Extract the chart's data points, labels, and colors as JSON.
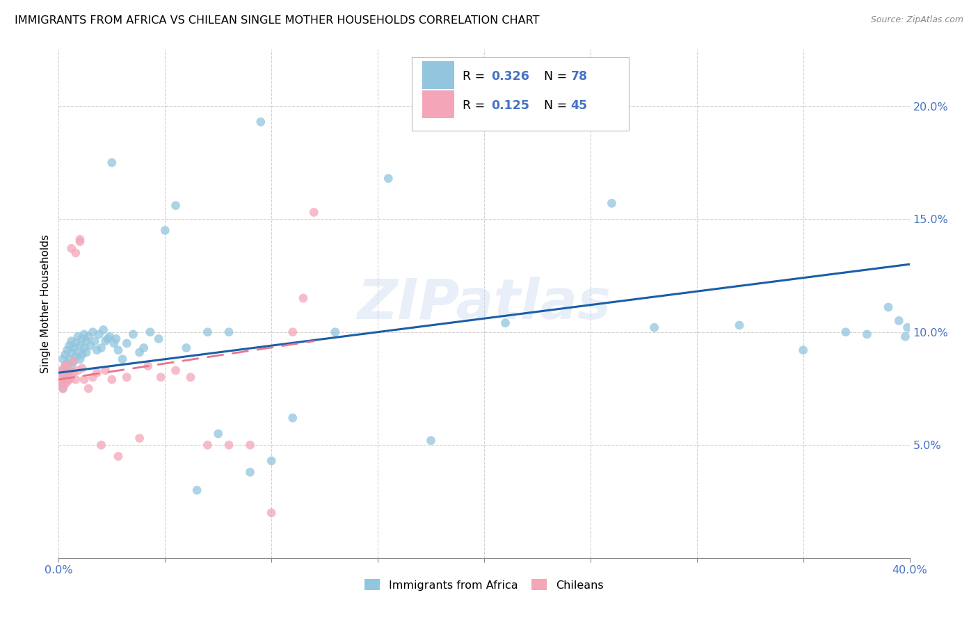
{
  "title": "IMMIGRANTS FROM AFRICA VS CHILEAN SINGLE MOTHER HOUSEHOLDS CORRELATION CHART",
  "source": "Source: ZipAtlas.com",
  "ylabel": "Single Mother Households",
  "legend_label1": "Immigrants from Africa",
  "legend_label2": "Chileans",
  "color_blue": "#92c5de",
  "color_pink": "#f4a6b8",
  "color_blue_line": "#1a5ea8",
  "color_pink_line": "#e8758a",
  "color_axis_text": "#4472c4",
  "watermark": "ZIPatlas",
  "blue_x": [
    0.001,
    0.001,
    0.002,
    0.002,
    0.002,
    0.003,
    0.003,
    0.003,
    0.004,
    0.004,
    0.004,
    0.005,
    0.005,
    0.005,
    0.006,
    0.006,
    0.006,
    0.007,
    0.007,
    0.008,
    0.008,
    0.009,
    0.009,
    0.01,
    0.01,
    0.011,
    0.011,
    0.012,
    0.012,
    0.013,
    0.013,
    0.014,
    0.015,
    0.016,
    0.017,
    0.018,
    0.019,
    0.02,
    0.021,
    0.022,
    0.023,
    0.024,
    0.025,
    0.026,
    0.027,
    0.028,
    0.03,
    0.032,
    0.035,
    0.038,
    0.04,
    0.043,
    0.047,
    0.05,
    0.055,
    0.06,
    0.065,
    0.07,
    0.075,
    0.08,
    0.09,
    0.095,
    0.1,
    0.11,
    0.13,
    0.155,
    0.175,
    0.21,
    0.26,
    0.28,
    0.32,
    0.35,
    0.37,
    0.38,
    0.39,
    0.395,
    0.398,
    0.399
  ],
  "blue_y": [
    0.077,
    0.082,
    0.075,
    0.083,
    0.088,
    0.08,
    0.085,
    0.09,
    0.079,
    0.086,
    0.092,
    0.082,
    0.088,
    0.094,
    0.085,
    0.091,
    0.096,
    0.087,
    0.093,
    0.089,
    0.095,
    0.091,
    0.098,
    0.088,
    0.094,
    0.09,
    0.097,
    0.093,
    0.099,
    0.091,
    0.096,
    0.098,
    0.094,
    0.1,
    0.096,
    0.092,
    0.099,
    0.093,
    0.101,
    0.096,
    0.097,
    0.098,
    0.175,
    0.095,
    0.097,
    0.092,
    0.088,
    0.095,
    0.099,
    0.091,
    0.093,
    0.1,
    0.097,
    0.145,
    0.156,
    0.093,
    0.03,
    0.1,
    0.055,
    0.1,
    0.038,
    0.193,
    0.043,
    0.062,
    0.1,
    0.168,
    0.052,
    0.104,
    0.157,
    0.102,
    0.103,
    0.092,
    0.1,
    0.099,
    0.111,
    0.105,
    0.098,
    0.102
  ],
  "pink_x": [
    0.001,
    0.001,
    0.001,
    0.002,
    0.002,
    0.002,
    0.003,
    0.003,
    0.003,
    0.004,
    0.004,
    0.004,
    0.005,
    0.005,
    0.006,
    0.006,
    0.007,
    0.007,
    0.008,
    0.008,
    0.009,
    0.01,
    0.01,
    0.011,
    0.012,
    0.014,
    0.016,
    0.018,
    0.02,
    0.022,
    0.025,
    0.028,
    0.032,
    0.038,
    0.042,
    0.048,
    0.055,
    0.062,
    0.07,
    0.08,
    0.09,
    0.1,
    0.11,
    0.115,
    0.12
  ],
  "pink_y": [
    0.077,
    0.08,
    0.083,
    0.075,
    0.079,
    0.082,
    0.077,
    0.081,
    0.085,
    0.078,
    0.082,
    0.085,
    0.079,
    0.083,
    0.08,
    0.137,
    0.082,
    0.087,
    0.079,
    0.135,
    0.083,
    0.14,
    0.141,
    0.084,
    0.079,
    0.075,
    0.08,
    0.082,
    0.05,
    0.083,
    0.079,
    0.045,
    0.08,
    0.053,
    0.085,
    0.08,
    0.083,
    0.08,
    0.05,
    0.05,
    0.05,
    0.02,
    0.1,
    0.115,
    0.153
  ],
  "blue_line_x": [
    0.0,
    0.4
  ],
  "blue_line_y": [
    0.082,
    0.13
  ],
  "pink_line_x": [
    0.0,
    0.12
  ],
  "pink_line_y": [
    0.079,
    0.096
  ],
  "xlim": [
    0.0,
    0.4
  ],
  "ylim": [
    0.0,
    0.225
  ],
  "x_ticks": [
    0.0,
    0.05,
    0.1,
    0.15,
    0.2,
    0.25,
    0.3,
    0.35,
    0.4
  ],
  "y_ticks": [
    0.05,
    0.1,
    0.15,
    0.2
  ],
  "x_tick_labels": [
    "0.0%",
    "",
    "",
    "",
    "",
    "",
    "",
    "",
    "40.0%"
  ],
  "y_tick_labels": [
    "5.0%",
    "10.0%",
    "15.0%",
    "20.0%"
  ]
}
